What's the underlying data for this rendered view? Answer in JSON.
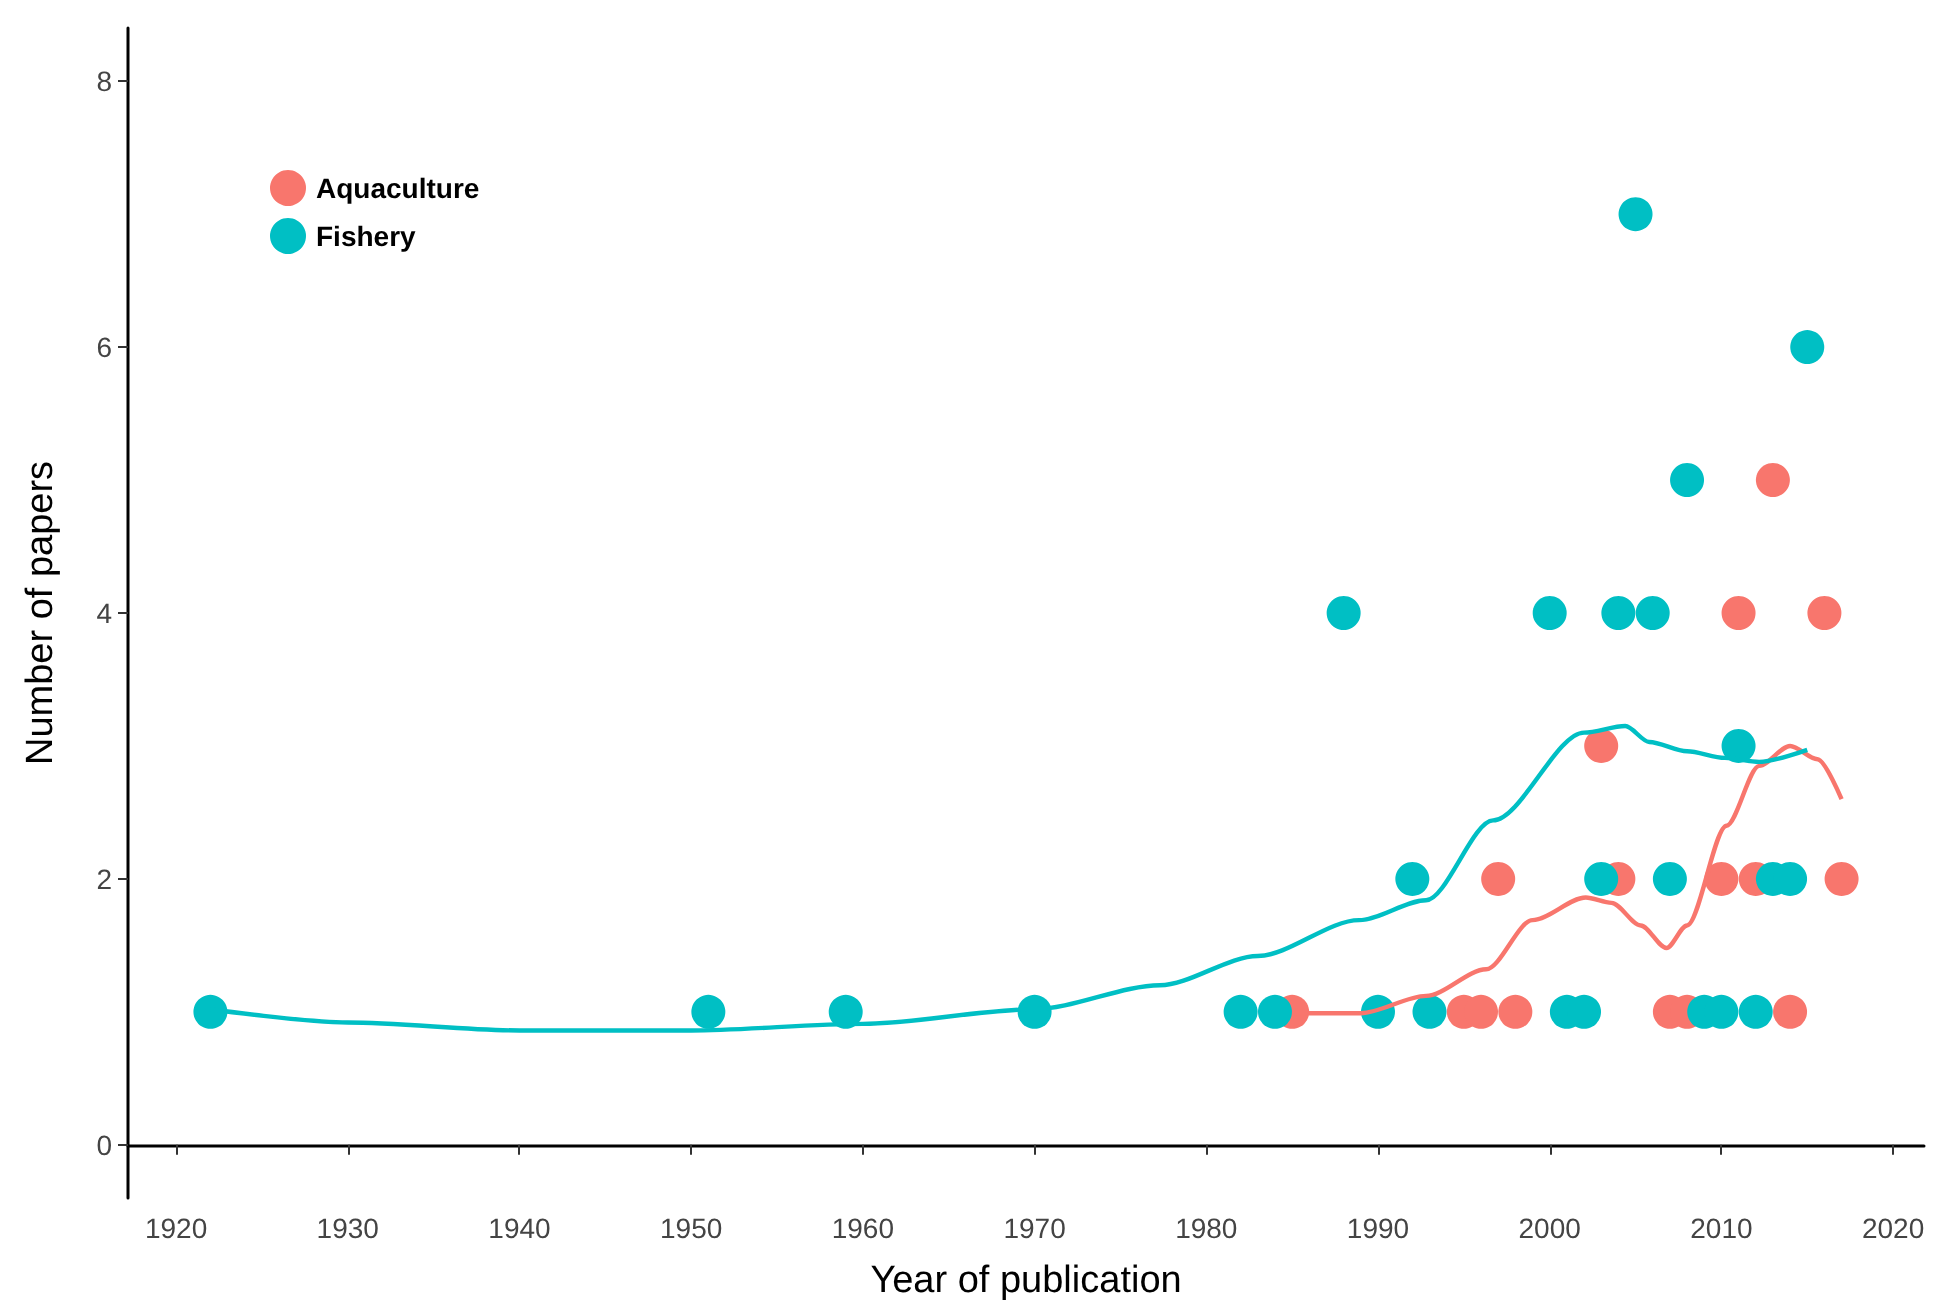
{
  "chart_data": {
    "type": "scatter",
    "xlabel": "Year of publication",
    "ylabel": "Number of papers",
    "xlim": [
      1917.2,
      2021.8
    ],
    "xticks": [
      1920,
      1930,
      1940,
      1950,
      1960,
      1970,
      1980,
      1990,
      2000,
      2010,
      2020
    ],
    "ylim": [
      -0.4,
      8.4
    ],
    "yticks": [
      0,
      2,
      4,
      6,
      8
    ],
    "grid": false,
    "legend": "top left",
    "marker": "circle",
    "series": [
      {
        "name": "Aquaculture",
        "color": "#f8766d",
        "x": [
          2013,
          2011,
          2016,
          2003,
          1997,
          2004,
          2010,
          2012,
          2017,
          1985,
          1995,
          1996,
          1998,
          2007,
          2008,
          2014
        ],
        "values": [
          5,
          4,
          4,
          3,
          2,
          2,
          2,
          2,
          2,
          1,
          1,
          1,
          1,
          1,
          1,
          1
        ]
      },
      {
        "name": "Fishery",
        "color": "#00bfc4",
        "x": [
          1922,
          1951,
          1959,
          1970,
          1982,
          1984,
          1990,
          1993,
          2001,
          2002,
          2009,
          2010,
          2012,
          1992,
          2003,
          2007,
          2013,
          2014,
          2011,
          1988,
          2000,
          2004,
          2006,
          2008,
          2015,
          2005
        ],
        "values": [
          1,
          1,
          1,
          1,
          1,
          1,
          1,
          1,
          1,
          1,
          1,
          1,
          1,
          2,
          2,
          2,
          2,
          2,
          3,
          4,
          4,
          4,
          4,
          5,
          6,
          7
        ]
      },
      {
        "type": "line",
        "color": "#f8766d",
        "marker": "none",
        "x": [
          1985,
          1989,
          1992.8,
          1996.3,
          1999,
          2002.1,
          2003.6,
          2005.3,
          2006.8,
          2008,
          2010.3,
          2012.2,
          2014,
          2015.6,
          2017
        ],
        "values": [
          0.99,
          0.99,
          1.12,
          1.32,
          1.69,
          1.86,
          1.82,
          1.65,
          1.48,
          1.65,
          2.4,
          2.85,
          3.0,
          2.9,
          2.6
        ]
      },
      {
        "type": "line",
        "color": "#00bfc4",
        "marker": "none",
        "x": [
          1922,
          1930,
          1940,
          1950,
          1960,
          1970,
          1977.3,
          1983,
          1988.9,
          1992.8,
          1996.7,
          2002,
          2004.4,
          2005.8,
          2008,
          2010.2,
          2012.2,
          2015
        ],
        "values": [
          1.02,
          0.92,
          0.86,
          0.86,
          0.91,
          1.02,
          1.2,
          1.42,
          1.69,
          1.84,
          2.44,
          3.1,
          3.15,
          3.03,
          2.96,
          2.91,
          2.88,
          2.97
        ]
      }
    ]
  }
}
